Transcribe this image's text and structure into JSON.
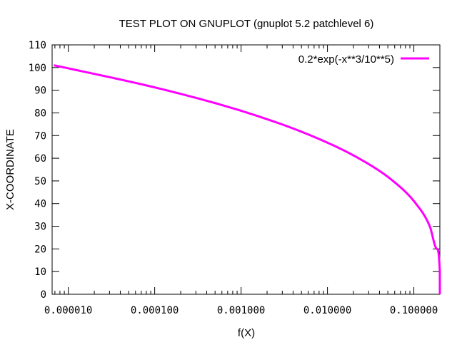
{
  "chart_data": {
    "type": "line",
    "title": "TEST PLOT ON GNUPLOT (gnuplot 5.2 patchlevel 6)",
    "xlabel": "f(X)",
    "ylabel": "X-COORDINATE",
    "x_scale": "log",
    "xlim": [
      6.5e-06,
      0.2
    ],
    "ylim": [
      0,
      110
    ],
    "x_ticks": [
      1e-05,
      0.0001,
      0.001,
      0.01,
      0.1
    ],
    "x_tick_labels": [
      "0.000010",
      "0.000100",
      "0.001000",
      "0.010000",
      "0.100000"
    ],
    "y_ticks": [
      0,
      10,
      20,
      30,
      40,
      50,
      60,
      70,
      80,
      90,
      100,
      110
    ],
    "y_tick_labels": [
      "0",
      "10",
      "20",
      "30",
      "40",
      "50",
      "60",
      "70",
      "80",
      "90",
      "100",
      "110"
    ],
    "grid": false,
    "legend_position": "top-right",
    "series": [
      {
        "name": "0.2*exp(-x**3/10**5)",
        "color": "#ff00ff",
        "points": [
          {
            "y": 0,
            "x": 0.2
          },
          {
            "y": 10,
            "x": 0.1998
          },
          {
            "y": 20,
            "x": 0.18462
          },
          {
            "y": 30,
            "x": 0.15274
          },
          {
            "y": 40,
            "x": 0.10546
          },
          {
            "y": 50,
            "x": 0.0573
          },
          {
            "y": 60,
            "x": 0.022924
          },
          {
            "y": 70,
            "x": 0.0064331
          },
          {
            "y": 80,
            "x": 0.001198
          },
          {
            "y": 90,
            "x": 0.00013627
          },
          {
            "y": 100,
            "x": 9.08e-06
          },
          {
            "y": 101,
            "x": 6.8e-06
          }
        ]
      }
    ]
  }
}
